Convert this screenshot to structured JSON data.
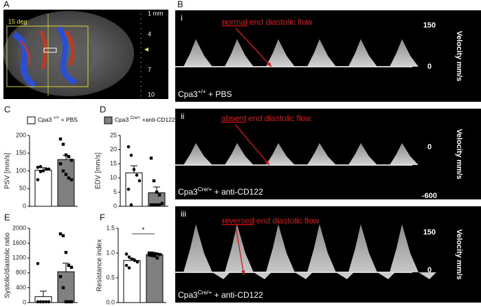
{
  "panel_a": {
    "label": "A",
    "angle": "15 deg",
    "scale_unit": "1 mm",
    "scale_ticks": [
      4,
      7,
      10
    ]
  },
  "panel_b": {
    "label": "B",
    "panels": [
      {
        "label": "i",
        "highlight": "normal",
        "caption": " end diastolic flow",
        "ticks": [
          150,
          0
        ],
        "axis_label": "Velocity mm/s",
        "group": {
          "base": "Cpa3",
          "sup": "+/+",
          "rest": " + PBS"
        }
      },
      {
        "label": "ii",
        "highlight": "absent",
        "caption": " end diastolic flow",
        "ticks": [
          0,
          -600
        ],
        "axis_label": "Velocity mm/s",
        "group": {
          "base": "Cpa3",
          "sup": "Cre/+",
          "rest": " + anti-CD122"
        }
      },
      {
        "label": "iii",
        "highlight": "reversed",
        "caption": " end diastolic flow",
        "ticks": [
          150,
          0
        ],
        "axis_label": "Velocity mm/s",
        "group": {
          "base": "Cpa3",
          "sup": "Cre/+",
          "rest": " + anti-CD122"
        }
      }
    ]
  },
  "legend": [
    {
      "base": "Cpa3 ",
      "sup": "+/+",
      "rest": " + PBS",
      "color": "#ffffff"
    },
    {
      "base": "Cpa3 ",
      "sup": "Cre/+",
      "rest": " +anti-CD122",
      "color": "#808080"
    }
  ],
  "chart_data": [
    {
      "type": "bar",
      "panel": "C",
      "ylabel": "PSV [mm/s]",
      "ylim": [
        0,
        200
      ],
      "yticks": [
        0,
        50,
        100,
        150,
        200
      ],
      "series": [
        {
          "color": "#ffffff",
          "value": 102,
          "error": 7,
          "points": [
            75,
            98,
            100,
            105,
            105,
            110,
            112
          ]
        },
        {
          "color": "#808080",
          "value": 132,
          "error": 12,
          "points": [
            190,
            175,
            145,
            140,
            130,
            120,
            100,
            90,
            80,
            75
          ]
        }
      ]
    },
    {
      "type": "bar",
      "panel": "D",
      "ylabel": "EDV [mm/s]",
      "ylim": [
        0,
        25
      ],
      "yticks": [
        0,
        5,
        10,
        15,
        20,
        25
      ],
      "series": [
        {
          "color": "#ffffff",
          "value": 11.8,
          "error": 2.5,
          "points": [
            21,
            18,
            13,
            11,
            9,
            6,
            0.5
          ]
        },
        {
          "color": "#808080",
          "value": 4.8,
          "error": 2,
          "points": [
            17,
            9,
            5,
            4,
            1,
            0.5,
            0.5,
            0.5,
            0.5
          ]
        }
      ]
    },
    {
      "type": "bar",
      "panel": "E",
      "ylabel": "Systolic/diastolic ratio",
      "ylim": [
        0,
        2000
      ],
      "yticks": [
        0,
        400,
        800,
        1200,
        1600,
        2000
      ],
      "series": [
        {
          "color": "#ffffff",
          "value": 160,
          "error": 150,
          "points": [
            1050,
            20,
            20,
            20,
            20,
            20,
            20
          ]
        },
        {
          "color": "#808080",
          "value": 830,
          "error": 230,
          "points": [
            1850,
            1800,
            1350,
            1000,
            950,
            700,
            400,
            20,
            20,
            20
          ]
        }
      ]
    },
    {
      "type": "bar",
      "panel": "F",
      "ylabel": "Resistance index",
      "ylim": [
        0,
        1.5
      ],
      "yticks": [
        {
          "value": 0,
          "label": "0.0"
        },
        {
          "value": 0.5,
          "label": "0.5"
        },
        {
          "value": 1,
          "label": "1.0"
        },
        {
          "value": 1.5,
          "label": "1.5"
        }
      ],
      "significance": "*",
      "series": [
        {
          "color": "#ffffff",
          "value": 0.85,
          "error": 0.04,
          "points": [
            0.98,
            0.92,
            0.88,
            0.85,
            0.82,
            0.75,
            0.7
          ]
        },
        {
          "color": "#808080",
          "value": 0.97,
          "error": 0.02,
          "points": [
            1.0,
            1.0,
            0.99,
            0.98,
            0.97,
            0.96,
            0.95,
            0.94,
            0.9
          ]
        }
      ]
    }
  ]
}
